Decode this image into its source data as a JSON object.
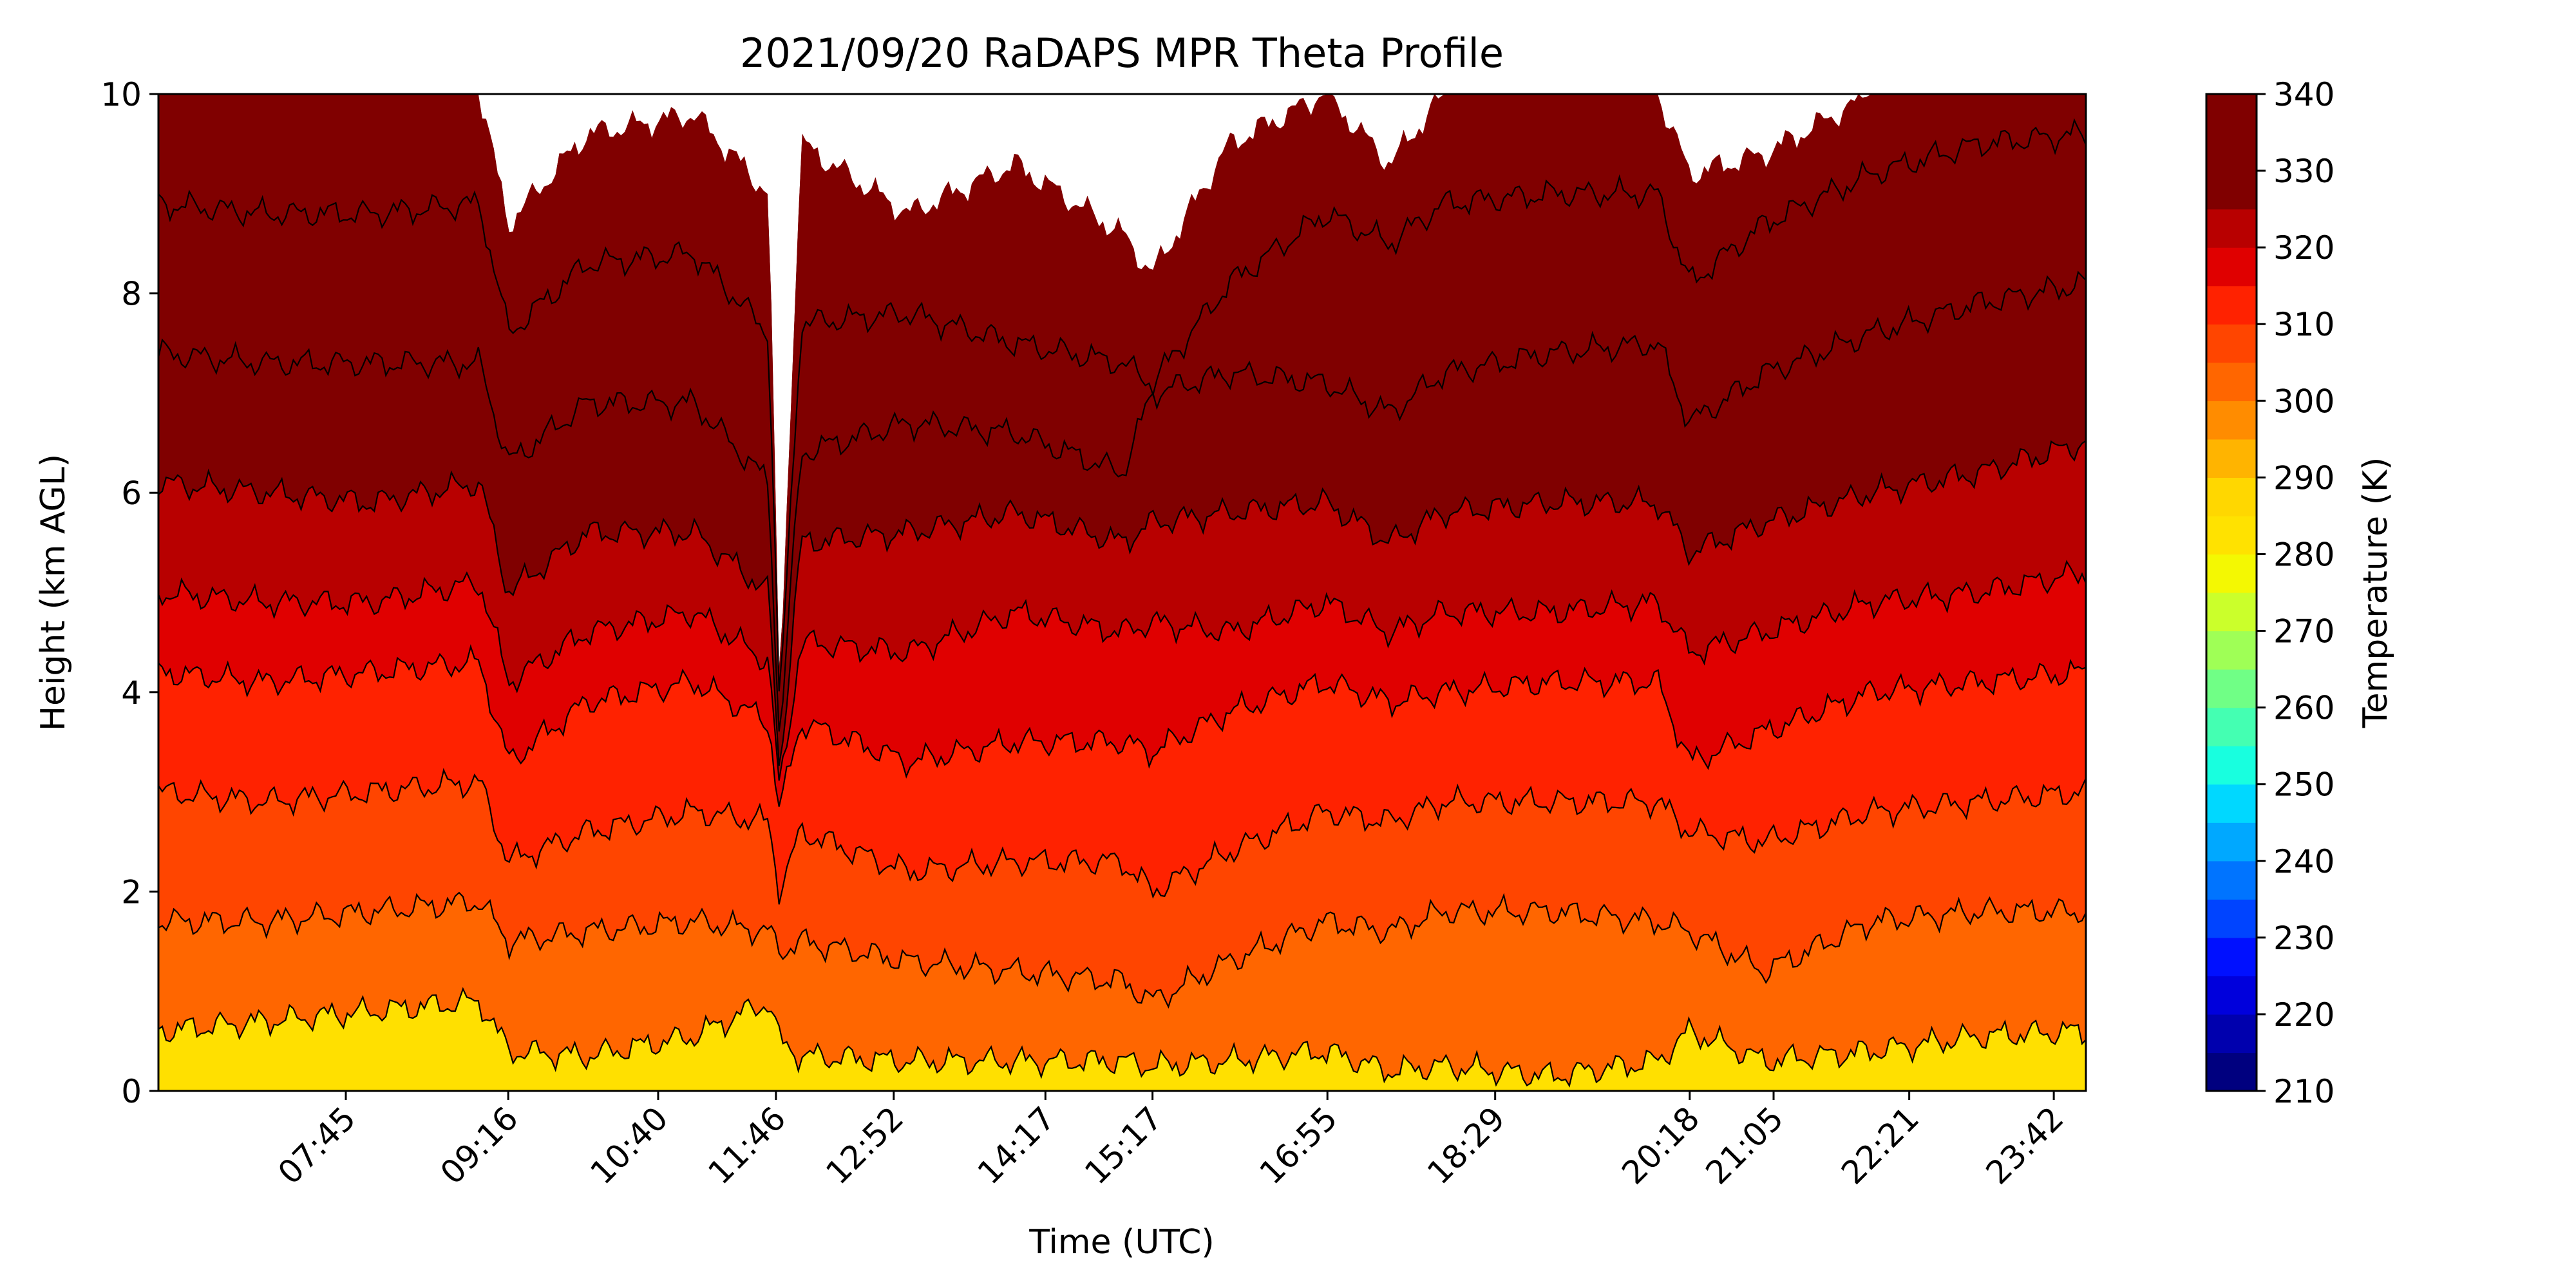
{
  "chart_data": {
    "type": "filled-contour",
    "title": "2021/09/20 RaDAPS MPR Theta Profile",
    "xlabel": "Time (UTC)",
    "ylabel": "Height (km AGL)",
    "colorbar_label": "Temperature (K)",
    "x_tick_labels": [
      "07:45",
      "09:16",
      "10:40",
      "11:46",
      "12:52",
      "14:17",
      "15:17",
      "16:55",
      "18:29",
      "20:18",
      "21:05",
      "22:21",
      "23:42"
    ],
    "x_tick_times_h": [
      7.75,
      9.2667,
      10.6667,
      11.7667,
      12.8667,
      14.2833,
      15.2833,
      16.9167,
      18.4833,
      20.3,
      21.0833,
      22.35,
      23.7
    ],
    "x_range_h": [
      6.0,
      24.0
    ],
    "ylim": [
      0,
      10
    ],
    "y_ticks": [
      0,
      2,
      4,
      6,
      8,
      10
    ],
    "colorbar_ticks": [
      210,
      220,
      230,
      240,
      250,
      260,
      270,
      280,
      290,
      300,
      310,
      320,
      330,
      340
    ],
    "colorbar_range": [
      210,
      340
    ],
    "levels": [
      210,
      215,
      220,
      225,
      230,
      235,
      240,
      245,
      250,
      255,
      260,
      265,
      270,
      275,
      280,
      285,
      290,
      295,
      300,
      305,
      310,
      315,
      320,
      325,
      330,
      335,
      340
    ],
    "band_colors": [
      "#00007f",
      "#0000ae",
      "#0000dc",
      "#0010ff",
      "#0044ff",
      "#0074ff",
      "#00a8ff",
      "#00d8ff",
      "#18ffdf",
      "#44ffb2",
      "#70ff86",
      "#9fff56",
      "#cbff2b",
      "#f4f802",
      "#ffe200",
      "#ffd700",
      "#ffb400",
      "#ff8c00",
      "#ff6600",
      "#ff4500",
      "#ff2200",
      "#e00000",
      "#b80000",
      "#800000",
      "#800000",
      "#800000"
    ],
    "contour_series": [
      {
        "level": 295,
        "time_h": [
          6.0,
          7.0,
          8.0,
          9.0,
          9.27,
          10.0,
          11.0,
          11.7,
          11.8,
          12.0,
          13.0,
          14.0,
          15.0,
          15.28,
          16.0,
          16.9,
          17.5,
          18.0,
          19.0,
          20.0,
          20.3,
          21.0,
          22.0,
          23.0,
          24.0
        ],
        "height_km": [
          0.6,
          0.7,
          0.8,
          0.9,
          0.4,
          0.35,
          0.55,
          0.9,
          0.5,
          0.35,
          0.3,
          0.3,
          0.3,
          0.25,
          0.3,
          0.4,
          0.2,
          0.25,
          0.15,
          0.3,
          0.6,
          0.3,
          0.4,
          0.55,
          0.6
        ]
      },
      {
        "level": 300,
        "time_h": [
          6.0,
          7.0,
          8.0,
          9.0,
          9.27,
          10.0,
          11.0,
          11.7,
          11.8,
          12.0,
          13.0,
          14.0,
          15.0,
          15.28,
          16.0,
          16.9,
          17.5,
          18.0,
          19.0,
          20.0,
          20.3,
          21.0,
          22.0,
          23.0,
          24.0
        ],
        "height_km": [
          1.7,
          1.7,
          1.8,
          1.9,
          1.5,
          1.6,
          1.7,
          1.6,
          1.4,
          1.5,
          1.3,
          1.2,
          1.1,
          0.9,
          1.3,
          1.7,
          1.6,
          1.8,
          1.8,
          1.7,
          1.6,
          1.2,
          1.7,
          1.8,
          1.8
        ]
      },
      {
        "level": 305,
        "time_h": [
          6.0,
          7.0,
          8.0,
          9.0,
          9.27,
          10.0,
          11.0,
          11.7,
          11.8,
          12.0,
          13.0,
          14.0,
          15.0,
          15.28,
          16.0,
          16.9,
          17.5,
          18.0,
          19.0,
          20.0,
          20.3,
          21.0,
          22.0,
          23.0,
          24.0
        ],
        "height_km": [
          3.0,
          2.9,
          3.0,
          3.1,
          2.3,
          2.6,
          2.8,
          2.7,
          2.0,
          2.6,
          2.2,
          2.3,
          2.3,
          2.0,
          2.4,
          2.8,
          2.7,
          2.9,
          2.9,
          2.9,
          2.6,
          2.5,
          2.8,
          2.9,
          3.0
        ]
      },
      {
        "level": 310,
        "time_h": [
          6.0,
          7.0,
          8.0,
          9.0,
          9.27,
          10.0,
          11.0,
          11.7,
          11.8,
          12.0,
          13.0,
          14.0,
          15.0,
          15.28,
          16.0,
          16.9,
          17.5,
          18.0,
          19.0,
          20.0,
          20.3,
          21.0,
          22.0,
          23.0,
          24.0
        ],
        "height_km": [
          4.2,
          4.1,
          4.2,
          4.3,
          3.3,
          3.9,
          4.1,
          3.7,
          2.8,
          3.7,
          3.3,
          3.5,
          3.5,
          3.4,
          3.8,
          4.1,
          3.9,
          4.0,
          4.1,
          4.1,
          3.3,
          3.6,
          4.0,
          4.1,
          4.2
        ]
      },
      {
        "level": 315,
        "time_h": [
          6.0,
          7.0,
          8.0,
          9.0,
          9.27,
          10.0,
          11.0,
          11.7,
          11.8,
          12.0,
          13.0,
          14.0,
          15.0,
          15.28,
          16.0,
          16.9,
          17.5,
          18.0,
          19.0,
          20.0,
          20.3,
          21.0,
          22.0,
          23.0,
          24.0
        ],
        "height_km": [
          5.0,
          4.9,
          4.9,
          5.1,
          4.1,
          4.6,
          4.8,
          4.3,
          3.0,
          4.5,
          4.4,
          4.8,
          4.6,
          4.7,
          4.6,
          4.9,
          4.6,
          4.8,
          4.8,
          4.9,
          4.4,
          4.6,
          4.9,
          5.0,
          5.2
        ]
      },
      {
        "level": 320,
        "time_h": [
          6.0,
          7.0,
          8.0,
          9.0,
          9.27,
          10.0,
          11.0,
          11.7,
          11.8,
          12.0,
          13.0,
          14.0,
          15.0,
          15.28,
          16.0,
          16.9,
          17.5,
          18.0,
          19.0,
          20.0,
          20.3,
          21.0,
          22.0,
          23.0,
          24.0
        ],
        "height_km": [
          6.1,
          6.0,
          5.9,
          6.1,
          5.0,
          5.6,
          5.6,
          5.0,
          3.2,
          5.5,
          5.6,
          5.8,
          5.5,
          5.7,
          5.8,
          5.9,
          5.5,
          5.8,
          5.9,
          5.9,
          5.4,
          5.7,
          6.0,
          6.2,
          6.5
        ]
      },
      {
        "level": 325,
        "time_h": [
          6.0,
          7.0,
          8.0,
          9.0,
          9.27,
          10.0,
          11.0,
          11.7,
          11.8,
          12.0,
          13.0,
          14.0,
          15.0,
          15.28,
          16.0,
          16.9,
          17.5,
          18.0,
          19.0,
          20.0,
          20.3,
          21.0,
          22.0,
          23.0,
          24.0
        ],
        "height_km": [
          7.4,
          7.3,
          7.3,
          7.3,
          6.3,
          6.9,
          6.9,
          6.1,
          3.5,
          6.4,
          6.7,
          6.6,
          6.2,
          7.0,
          7.2,
          7.1,
          6.8,
          7.2,
          7.4,
          7.5,
          6.7,
          7.2,
          7.6,
          7.9,
          8.1
        ]
      },
      {
        "level": 330,
        "time_h": [
          6.0,
          7.0,
          8.0,
          9.0,
          9.27,
          10.0,
          11.0,
          11.7,
          11.8,
          12.0,
          13.0,
          14.0,
          15.0,
          15.28,
          16.0,
          16.9,
          17.5,
          18.0,
          19.0,
          20.0,
          20.3,
          21.0,
          22.0,
          23.0,
          24.0
        ],
        "height_km": [
          8.9,
          8.8,
          8.8,
          8.9,
          7.6,
          8.3,
          8.4,
          7.6,
          3.8,
          7.7,
          7.8,
          7.5,
          7.3,
          7.1,
          8.1,
          8.8,
          8.5,
          8.9,
          9.0,
          9.0,
          8.1,
          8.7,
          9.2,
          9.5,
          9.6
        ]
      },
      {
        "level": 335,
        "time_h": [
          6.0,
          7.0,
          8.0,
          9.0,
          9.27,
          10.0,
          11.0,
          11.7,
          11.8,
          12.0,
          13.0,
          14.0,
          15.0,
          15.28,
          16.0,
          16.9,
          17.5,
          18.0,
          19.0,
          20.0,
          20.3,
          21.0,
          22.0,
          23.0,
          24.0
        ],
        "height_km": [
          10.0,
          10.0,
          10.0,
          10.0,
          8.7,
          9.6,
          9.8,
          9.0,
          4.0,
          9.5,
          8.8,
          9.3,
          8.6,
          8.2,
          9.5,
          10.0,
          9.3,
          10.0,
          10.0,
          10.0,
          9.2,
          9.4,
          10.0,
          10.0,
          10.0
        ]
      }
    ]
  }
}
